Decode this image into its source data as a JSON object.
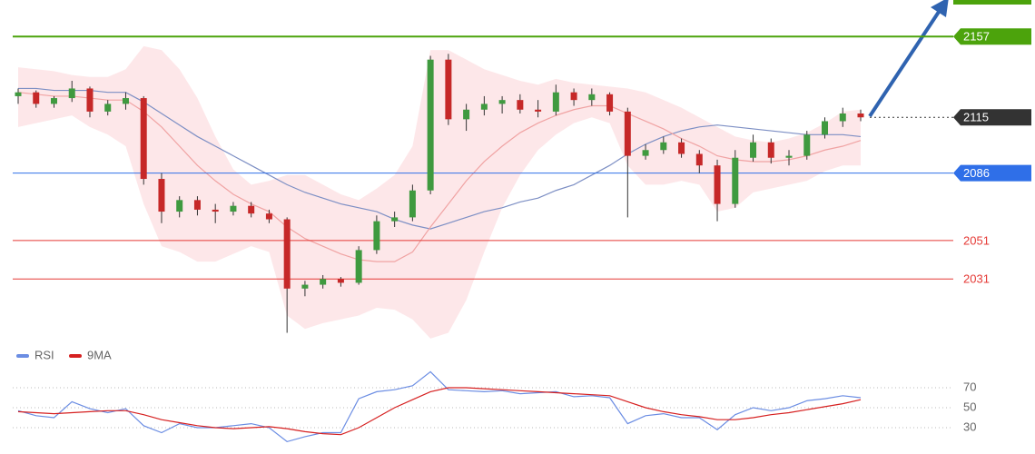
{
  "chart_data": [
    {
      "type": "candlestick",
      "ylim": [
        1999,
        2176
      ],
      "up_color": "#3f9a3f",
      "down_color": "#c62828",
      "open": [
        2126,
        2128,
        2122,
        2125,
        2130,
        2118,
        2122,
        2125,
        2083,
        2066,
        2072,
        2067,
        2066,
        2069,
        2065,
        2062,
        2026,
        2028,
        2031,
        2029,
        2046,
        2061,
        2063,
        2077,
        2145,
        2114,
        2119,
        2122,
        2124,
        2119,
        2118,
        2128,
        2124,
        2127,
        2118,
        2095,
        2098,
        2102,
        2096,
        2090,
        2070,
        2094,
        2102,
        2094,
        2095,
        2106,
        2113,
        2117
      ],
      "high": [
        2130,
        2129,
        2126,
        2134,
        2131,
        2124,
        2128,
        2126,
        2086,
        2074,
        2074,
        2070,
        2071,
        2071,
        2067,
        2063,
        2030,
        2033,
        2032,
        2048,
        2064,
        2066,
        2080,
        2147,
        2148,
        2122,
        2126,
        2126,
        2127,
        2124,
        2132,
        2130,
        2130,
        2128,
        2120,
        2101,
        2105,
        2104,
        2098,
        2093,
        2098,
        2106,
        2104,
        2098,
        2108,
        2115,
        2120,
        2119
      ],
      "low": [
        2122,
        2120,
        2120,
        2123,
        2115,
        2116,
        2119,
        2080,
        2060,
        2063,
        2064,
        2060,
        2064,
        2063,
        2060,
        2003,
        2022,
        2026,
        2027,
        2028,
        2044,
        2058,
        2061,
        2075,
        2111,
        2108,
        2116,
        2117,
        2117,
        2115,
        2116,
        2121,
        2121,
        2116,
        2063,
        2093,
        2096,
        2094,
        2086,
        2061,
        2068,
        2092,
        2091,
        2090,
        2093,
        2104,
        2110,
        2113
      ],
      "close": [
        2128,
        2122,
        2125,
        2130,
        2118,
        2122,
        2125,
        2083,
        2066,
        2072,
        2067,
        2066,
        2069,
        2065,
        2062,
        2026,
        2028,
        2031,
        2029,
        2046,
        2061,
        2063,
        2077,
        2145,
        2114,
        2119,
        2122,
        2124,
        2119,
        2118,
        2128,
        2124,
        2127,
        2118,
        2095,
        2098,
        2102,
        2096,
        2090,
        2070,
        2094,
        2102,
        2094,
        2095,
        2106,
        2113,
        2117,
        2115
      ],
      "bands": {
        "color": "#fde1e4",
        "upper": [
          2141,
          2140,
          2139,
          2137,
          2136,
          2136,
          2140,
          2152,
          2150,
          2140,
          2125,
          2105,
          2088,
          2080,
          2082,
          2085,
          2085,
          2080,
          2075,
          2072,
          2078,
          2085,
          2100,
          2150,
          2150,
          2145,
          2140,
          2137,
          2134,
          2132,
          2135,
          2133,
          2132,
          2131,
          2130,
          2128,
          2124,
          2120,
          2115,
          2110,
          2105,
          2103,
          2102,
          2104,
          2107,
          2112,
          2118,
          2119
        ],
        "lower": [
          2110,
          2112,
          2114,
          2116,
          2110,
          2106,
          2100,
          2070,
          2048,
          2045,
          2040,
          2040,
          2044,
          2048,
          2045,
          2012,
          2005,
          2008,
          2010,
          2012,
          2016,
          2015,
          2010,
          2000,
          2003,
          2020,
          2045,
          2068,
          2085,
          2098,
          2106,
          2112,
          2115,
          2112,
          2090,
          2080,
          2080,
          2082,
          2080,
          2066,
          2068,
          2076,
          2078,
          2080,
          2082,
          2087,
          2090,
          2090
        ]
      },
      "lines": [
        {
          "color": "#7d8fc4",
          "values": [
            2130,
            2130,
            2129,
            2129,
            2129,
            2128,
            2128,
            2123,
            2117,
            2111,
            2105,
            2100,
            2095,
            2090,
            2085,
            2080,
            2076,
            2073,
            2070,
            2068,
            2066,
            2062,
            2059,
            2057,
            2060,
            2063,
            2066,
            2068,
            2071,
            2073,
            2077,
            2080,
            2085,
            2090,
            2096,
            2101,
            2105,
            2108,
            2110,
            2111,
            2110,
            2109,
            2108,
            2107,
            2106,
            2106,
            2106,
            2105
          ]
        },
        {
          "color": "#f0a3a3",
          "values": [
            2128,
            2127,
            2126,
            2126,
            2125,
            2124,
            2124,
            2118,
            2110,
            2100,
            2090,
            2082,
            2075,
            2070,
            2066,
            2058,
            2052,
            2048,
            2044,
            2041,
            2040,
            2040,
            2045,
            2058,
            2070,
            2082,
            2092,
            2100,
            2107,
            2112,
            2116,
            2119,
            2121,
            2121,
            2117,
            2113,
            2109,
            2104,
            2100,
            2095,
            2093,
            2092,
            2092,
            2093,
            2095,
            2098,
            2100,
            2103
          ]
        }
      ],
      "levels": [
        {
          "value": 2157,
          "color": "#4ca30c",
          "style": "box",
          "line": "solid"
        },
        {
          "value": 2115,
          "color": "#333333",
          "style": "box",
          "line": "dotted"
        },
        {
          "value": 2086,
          "color": "#2f6fe8",
          "style": "box",
          "line": "solid"
        },
        {
          "value": 2051,
          "color": "#e53935",
          "style": "text",
          "line": "solid"
        },
        {
          "value": 2031,
          "color": "#e53935",
          "style": "text",
          "line": "solid"
        }
      ]
    },
    {
      "type": "line",
      "ylim": [
        10,
        90
      ],
      "yticks": [
        30,
        50,
        70
      ],
      "grid": true,
      "series": [
        {
          "name": "RSI",
          "color": "#6b8de3",
          "values": [
            47,
            42,
            40,
            56,
            49,
            45,
            49,
            32,
            25,
            34,
            30,
            30,
            32,
            34,
            30,
            16,
            21,
            25,
            25,
            59,
            66,
            68,
            72,
            86,
            68,
            67,
            66,
            67,
            64,
            65,
            66,
            61,
            62,
            60,
            34,
            42,
            44,
            40,
            40,
            28,
            43,
            50,
            47,
            50,
            57,
            59,
            62,
            60
          ]
        },
        {
          "name": "9MA",
          "color": "#d62020",
          "values": [
            46,
            45,
            44,
            45,
            46,
            47,
            47,
            43,
            38,
            35,
            32,
            30,
            29,
            30,
            31,
            29,
            26,
            24,
            23,
            30,
            40,
            50,
            58,
            66,
            70,
            70,
            69,
            68,
            67,
            66,
            65,
            64,
            63,
            62,
            56,
            50,
            46,
            43,
            41,
            38,
            38,
            40,
            43,
            45,
            48,
            51,
            54,
            58
          ]
        }
      ]
    }
  ]
}
